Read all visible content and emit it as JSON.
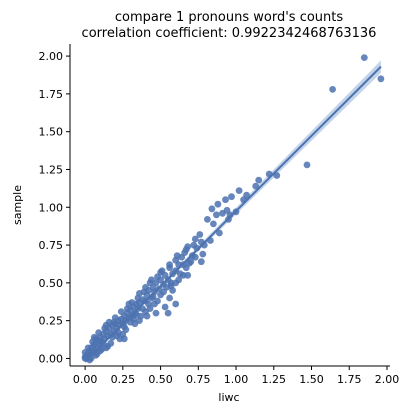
{
  "chart_data": {
    "type": "scatter",
    "title_lines": [
      "compare 1 pronouns word's counts",
      "correlation coefficient: 0.9922342468763136"
    ],
    "xlabel": "liwc",
    "ylabel": "sample",
    "xlim": [
      -0.1,
      2.02
    ],
    "ylim": [
      -0.05,
      2.08
    ],
    "xticks": [
      0.0,
      0.25,
      0.5,
      0.75,
      1.0,
      1.25,
      1.5,
      1.75,
      2.0
    ],
    "xtick_labels": [
      "0.00",
      "0.25",
      "0.50",
      "0.75",
      "1.00",
      "1.25",
      "1.50",
      "1.75",
      "2.00"
    ],
    "yticks": [
      0.0,
      0.25,
      0.5,
      0.75,
      1.0,
      1.25,
      1.5,
      1.75,
      2.0
    ],
    "ytick_labels": [
      "0.00",
      "0.25",
      "0.50",
      "0.75",
      "1.00",
      "1.25",
      "1.50",
      "1.75",
      "2.00"
    ],
    "grid": false,
    "legend": "none",
    "point_color": "#4c72b0",
    "regression": {
      "intercept": -0.02,
      "slope": 0.995,
      "x_range": [
        0.0,
        1.96
      ],
      "line_color": "#4c72b0",
      "band_color": "#a9c1e0"
    },
    "points": [
      [
        1.85,
        1.99
      ],
      [
        1.96,
        1.85
      ],
      [
        1.64,
        1.78
      ],
      [
        1.47,
        1.28
      ],
      [
        1.22,
        1.22
      ],
      [
        1.27,
        1.21
      ],
      [
        1.15,
        1.18
      ],
      [
        1.13,
        1.14
      ],
      [
        1.02,
        1.11
      ],
      [
        1.07,
        1.08
      ],
      [
        0.97,
        1.07
      ],
      [
        0.93,
        1.05
      ],
      [
        1.05,
        1.05
      ],
      [
        0.88,
        1.02
      ],
      [
        0.84,
        0.99
      ],
      [
        0.96,
        0.95
      ],
      [
        1.0,
        0.97
      ],
      [
        0.95,
        0.92
      ],
      [
        0.89,
        0.83
      ],
      [
        0.76,
        0.82
      ],
      [
        0.73,
        0.79
      ],
      [
        0.83,
        0.78
      ],
      [
        0.72,
        0.75
      ],
      [
        0.68,
        0.74
      ],
      [
        0.74,
        0.73
      ],
      [
        0.66,
        0.7
      ],
      [
        0.78,
        0.69
      ],
      [
        0.64,
        0.67
      ],
      [
        0.6,
        0.65
      ],
      [
        0.7,
        0.64
      ],
      [
        0.62,
        0.62
      ],
      [
        0.67,
        0.6
      ],
      [
        0.56,
        0.6
      ],
      [
        0.58,
        0.56
      ],
      [
        0.6,
        0.58
      ],
      [
        0.65,
        0.55
      ],
      [
        0.53,
        0.55
      ],
      [
        0.55,
        0.52
      ],
      [
        0.5,
        0.52
      ],
      [
        0.47,
        0.5
      ],
      [
        0.52,
        0.49
      ],
      [
        0.57,
        0.48
      ],
      [
        0.45,
        0.47
      ],
      [
        0.49,
        0.46
      ],
      [
        0.42,
        0.45
      ],
      [
        0.46,
        0.44
      ],
      [
        0.41,
        0.42
      ],
      [
        0.44,
        0.4
      ],
      [
        0.38,
        0.39
      ],
      [
        0.4,
        0.38
      ],
      [
        0.36,
        0.37
      ],
      [
        0.34,
        0.36
      ],
      [
        0.48,
        0.38
      ],
      [
        0.53,
        0.34
      ],
      [
        0.55,
        0.3
      ],
      [
        0.32,
        0.34
      ],
      [
        0.35,
        0.33
      ],
      [
        0.3,
        0.32
      ],
      [
        0.33,
        0.3
      ],
      [
        0.28,
        0.3
      ],
      [
        0.31,
        0.28
      ],
      [
        0.26,
        0.28
      ],
      [
        0.29,
        0.27
      ],
      [
        0.24,
        0.26
      ],
      [
        0.27,
        0.25
      ],
      [
        0.22,
        0.25
      ],
      [
        0.25,
        0.23
      ],
      [
        0.2,
        0.23
      ],
      [
        0.23,
        0.22
      ],
      [
        0.18,
        0.22
      ],
      [
        0.21,
        0.2
      ],
      [
        0.16,
        0.2
      ],
      [
        0.19,
        0.18
      ],
      [
        0.14,
        0.18
      ],
      [
        0.17,
        0.16
      ],
      [
        0.12,
        0.16
      ],
      [
        0.15,
        0.15
      ],
      [
        0.1,
        0.14
      ],
      [
        0.13,
        0.13
      ],
      [
        0.09,
        0.12
      ],
      [
        0.11,
        0.11
      ],
      [
        0.07,
        0.1
      ],
      [
        0.1,
        0.09
      ],
      [
        0.06,
        0.09
      ],
      [
        0.08,
        0.07
      ],
      [
        0.04,
        0.07
      ],
      [
        0.06,
        0.05
      ],
      [
        0.03,
        0.05
      ],
      [
        0.05,
        0.04
      ],
      [
        0.02,
        0.03
      ],
      [
        0.03,
        0.02
      ],
      [
        0.01,
        0.02
      ],
      [
        0.02,
        0.01
      ],
      [
        0.0,
        0.01
      ],
      [
        0.01,
        0.0
      ],
      [
        0.0,
        0.0
      ],
      [
        0.04,
        0.0
      ],
      [
        0.08,
        0.03
      ],
      [
        0.12,
        0.1
      ],
      [
        0.15,
        0.08
      ],
      [
        0.18,
        0.14
      ],
      [
        0.21,
        0.15
      ],
      [
        0.26,
        0.21
      ],
      [
        0.3,
        0.24
      ],
      [
        0.34,
        0.29
      ],
      [
        0.38,
        0.33
      ],
      [
        0.42,
        0.36
      ],
      [
        0.45,
        0.41
      ],
      [
        0.36,
        0.43
      ],
      [
        0.4,
        0.47
      ],
      [
        0.44,
        0.52
      ],
      [
        0.5,
        0.57
      ],
      [
        0.5,
        0.42
      ],
      [
        0.58,
        0.45
      ],
      [
        0.57,
        0.5
      ],
      [
        0.62,
        0.52
      ],
      [
        0.47,
        0.3
      ],
      [
        0.4,
        0.31
      ],
      [
        0.27,
        0.19
      ],
      [
        0.24,
        0.31
      ],
      [
        0.29,
        0.36
      ],
      [
        0.2,
        0.27
      ],
      [
        0.16,
        0.24
      ],
      [
        0.13,
        0.2
      ],
      [
        0.09,
        0.17
      ],
      [
        0.06,
        0.14
      ],
      [
        0.11,
        0.06
      ],
      [
        0.17,
        0.1
      ],
      [
        0.22,
        0.17
      ],
      [
        0.25,
        0.16
      ],
      [
        0.32,
        0.26
      ],
      [
        0.37,
        0.28
      ],
      [
        0.43,
        0.33
      ],
      [
        0.46,
        0.36
      ],
      [
        0.52,
        0.44
      ],
      [
        0.54,
        0.47
      ],
      [
        0.6,
        0.5
      ],
      [
        0.63,
        0.56
      ],
      [
        0.69,
        0.63
      ],
      [
        0.71,
        0.68
      ],
      [
        0.79,
        0.75
      ],
      [
        0.81,
        0.92
      ],
      [
        0.87,
        0.95
      ],
      [
        0.94,
        0.98
      ],
      [
        0.91,
        0.96
      ],
      [
        0.85,
        0.89
      ],
      [
        0.77,
        0.77
      ],
      [
        0.67,
        0.72
      ],
      [
        0.61,
        0.68
      ],
      [
        0.56,
        0.62
      ],
      [
        0.51,
        0.58
      ],
      [
        0.48,
        0.54
      ],
      [
        0.43,
        0.5
      ],
      [
        0.39,
        0.44
      ],
      [
        0.35,
        0.4
      ],
      [
        0.31,
        0.37
      ],
      [
        0.28,
        0.33
      ],
      [
        0.19,
        0.24
      ],
      [
        0.14,
        0.22
      ],
      [
        0.07,
        0.13
      ],
      [
        0.05,
        0.11
      ],
      [
        0.02,
        0.07
      ],
      [
        0.0,
        0.04
      ],
      [
        0.03,
        -0.01
      ],
      [
        0.07,
        0.02
      ],
      [
        0.1,
        0.05
      ],
      [
        0.14,
        0.07
      ],
      [
        0.23,
        0.13
      ],
      [
        0.26,
        0.13
      ],
      [
        0.33,
        0.23
      ],
      [
        0.36,
        0.25
      ],
      [
        0.41,
        0.28
      ],
      [
        0.6,
        0.36
      ],
      [
        0.56,
        0.4
      ],
      [
        0.65,
        0.62
      ],
      [
        0.73,
        0.67
      ],
      [
        0.77,
        0.64
      ],
      [
        0.68,
        0.55
      ]
    ]
  }
}
